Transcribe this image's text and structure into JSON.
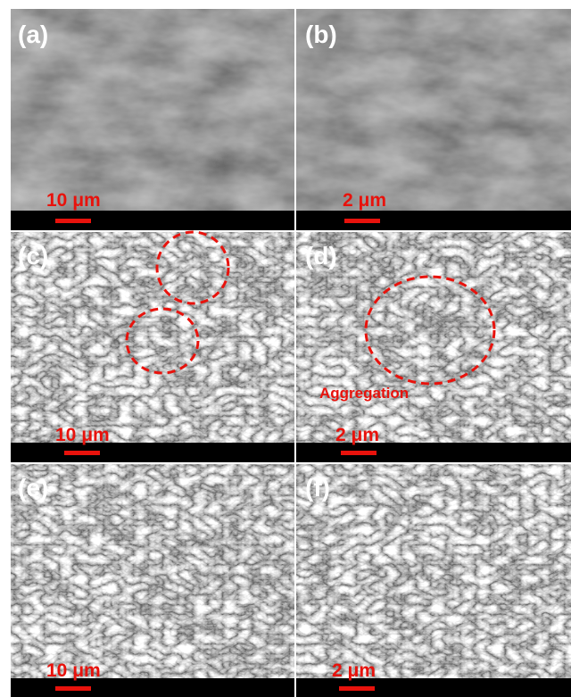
{
  "panels": [
    {
      "label": "(a)",
      "scale_bar": "10 μm"
    },
    {
      "label": "(b)",
      "scale_bar": "2 μm"
    },
    {
      "label": "(c)",
      "scale_bar": "10 μm"
    },
    {
      "label": "(d)",
      "scale_bar": "2 μm",
      "annotation": "Aggregation"
    },
    {
      "label": "(e)",
      "scale_bar": "10 μm"
    },
    {
      "label": "(f)",
      "scale_bar": "2 μm"
    }
  ]
}
